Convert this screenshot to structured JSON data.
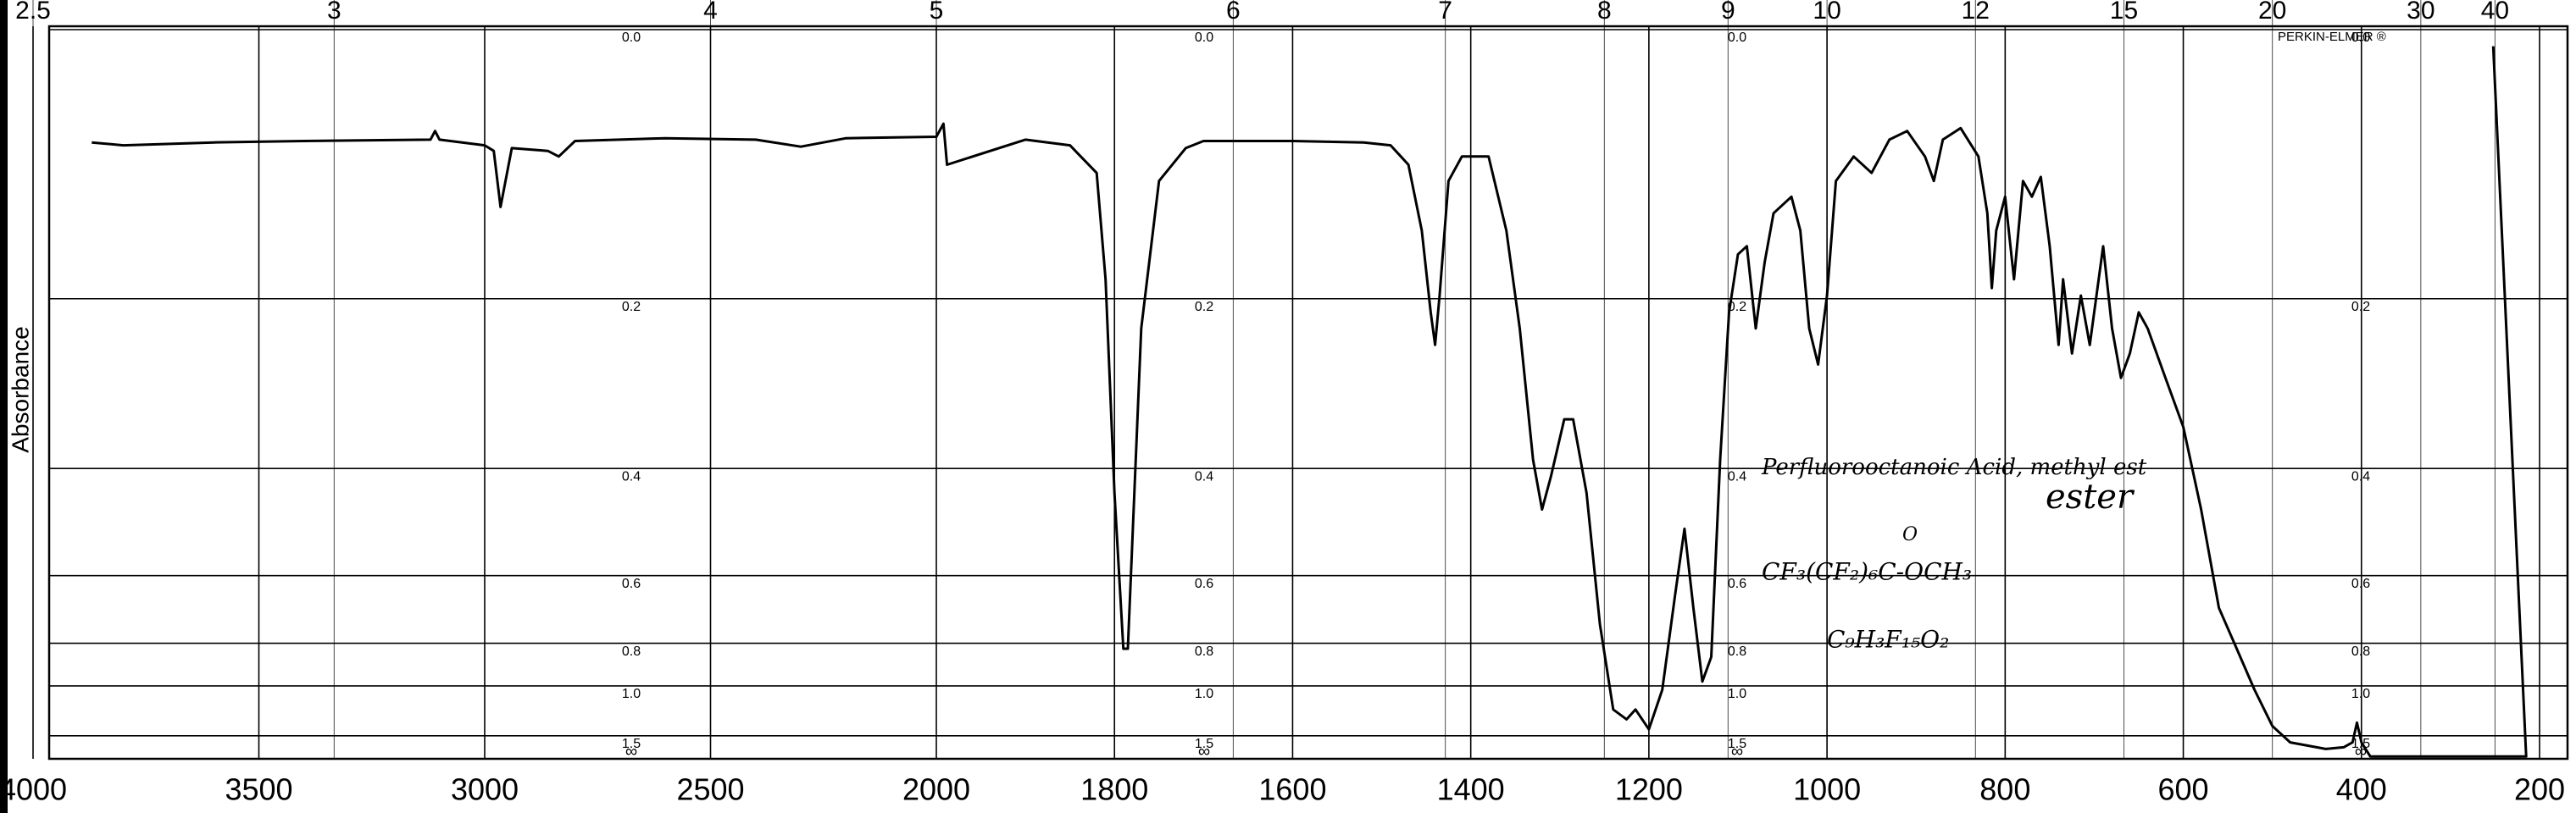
{
  "chart_data": {
    "type": "line",
    "y_axis_label": "Absorbance",
    "brand": "PERKIN-ELMER ®",
    "annotations": [
      "Perfluorooctanoic Acid, methyl est",
      "ester",
      "O",
      "CF₃(CF₂)₆C-OCH₃",
      "C₉H₃F₁₅O₂"
    ],
    "xlim": [
      4000,
      200
    ],
    "x_scale_break": 2000,
    "xticks": [
      4000,
      3500,
      3000,
      2500,
      2000,
      1800,
      1600,
      1400,
      1200,
      1000,
      800,
      600,
      400,
      200
    ],
    "top_ticks": [
      2.5,
      3,
      4,
      5,
      6,
      7,
      8,
      9,
      10,
      12,
      15,
      20,
      30,
      40
    ],
    "yticks": [
      {
        "value": 0,
        "label": "0.0"
      },
      0.2,
      0.4,
      0.6,
      0.8,
      {
        "value": 1,
        "label": "1.0"
      },
      1.5
    ],
    "y_infinity_label": "∞",
    "color": "#000000",
    "grid": true,
    "x": [
      3870,
      3800,
      3600,
      3400,
      3120,
      3110,
      3100,
      3000,
      2980,
      2965,
      2940,
      2860,
      2836,
      2800,
      2600,
      2400,
      2300,
      2200,
      2000,
      1992,
      1988,
      1900,
      1850,
      1820,
      1810,
      1800,
      1790,
      1785,
      1770,
      1750,
      1720,
      1700,
      1600,
      1520,
      1490,
      1470,
      1455,
      1445,
      1440,
      1435,
      1425,
      1410,
      1380,
      1360,
      1345,
      1330,
      1320,
      1310,
      1295,
      1285,
      1270,
      1255,
      1240,
      1225,
      1215,
      1200,
      1185,
      1170,
      1160,
      1150,
      1140,
      1130,
      1120,
      1110,
      1100,
      1090,
      1080,
      1070,
      1060,
      1040,
      1030,
      1020,
      1010,
      1000,
      990,
      970,
      950,
      930,
      910,
      890,
      880,
      870,
      850,
      830,
      820,
      815,
      810,
      800,
      790,
      780,
      770,
      760,
      750,
      740,
      735,
      725,
      715,
      705,
      690,
      680,
      670,
      660,
      650,
      640,
      620,
      600,
      580,
      560,
      540,
      520,
      500,
      480,
      440,
      420,
      410,
      405,
      400,
      390,
      300,
      260,
      250,
      215,
      252
    ],
    "values": [
      0.073,
      0.075,
      0.073,
      0.072,
      0.071,
      0.065,
      0.071,
      0.075,
      0.079,
      0.121,
      0.077,
      0.079,
      0.083,
      0.072,
      0.07,
      0.071,
      0.076,
      0.07,
      0.069,
      0.06,
      0.089,
      0.071,
      0.075,
      0.095,
      0.182,
      0.438,
      0.821,
      0.821,
      0.229,
      0.101,
      0.077,
      0.072,
      0.072,
      0.073,
      0.075,
      0.089,
      0.14,
      0.213,
      0.246,
      0.197,
      0.101,
      0.083,
      0.083,
      0.14,
      0.229,
      0.387,
      0.466,
      0.412,
      0.332,
      0.332,
      0.438,
      0.734,
      1.17,
      1.267,
      1.17,
      1.393,
      1.024,
      0.639,
      0.501,
      0.684,
      0.975,
      0.855,
      0.387,
      0.213,
      0.16,
      0.153,
      0.229,
      0.167,
      0.126,
      0.113,
      0.14,
      0.229,
      0.267,
      0.197,
      0.101,
      0.083,
      0.095,
      0.071,
      0.065,
      0.083,
      0.101,
      0.071,
      0.063,
      0.083,
      0.126,
      0.19,
      0.14,
      0.113,
      0.182,
      0.101,
      0.113,
      0.098,
      0.153,
      0.246,
      0.182,
      0.255,
      0.197,
      0.246,
      0.153,
      0.229,
      0.282,
      0.255,
      0.213,
      0.229,
      0.282,
      0.342,
      0.466,
      0.684,
      0.821,
      1.024,
      1.347,
      1.648,
      1.87,
      1.8,
      1.648,
      1.305,
      1.648,
      2.5,
      2.5,
      2.5,
      2.5,
      2.5,
      0.01
    ]
  }
}
